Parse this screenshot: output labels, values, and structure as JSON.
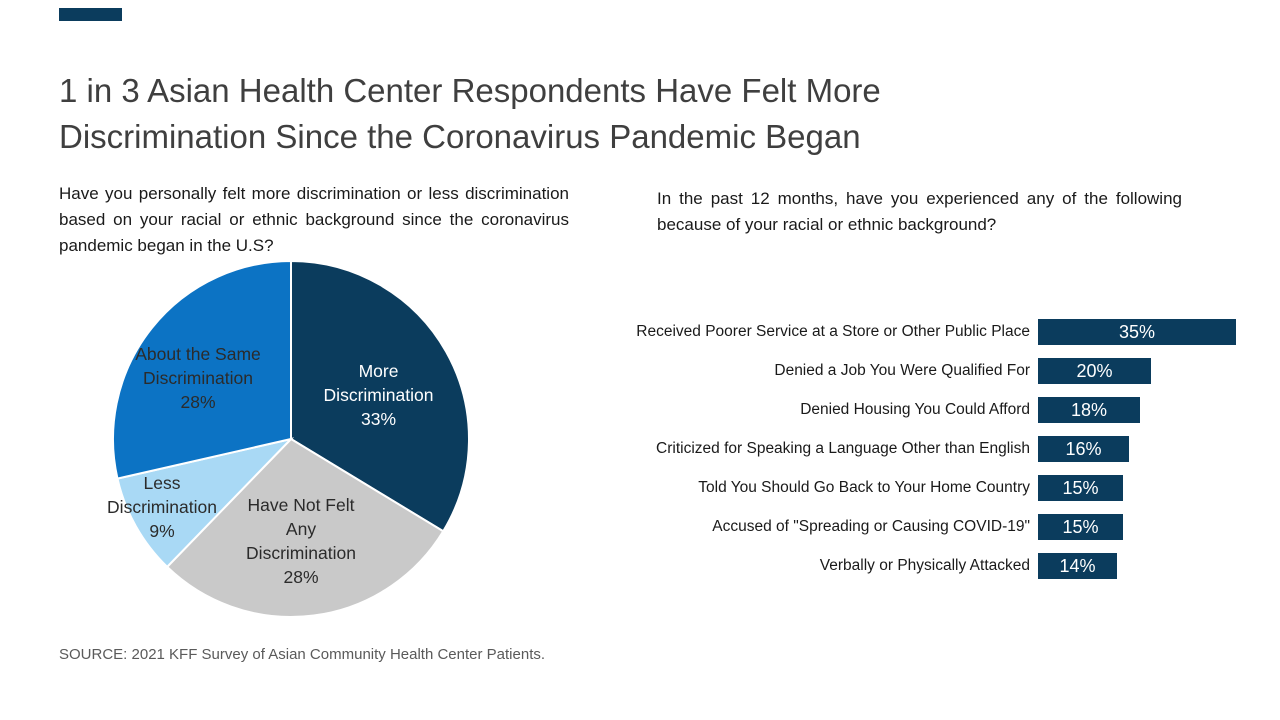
{
  "brand": {
    "accent_color": "#0b3c5d"
  },
  "title": "1 in 3 Asian Health Center Respondents Have Felt More Discrimination Since the Coronavirus Pandemic Began",
  "source": "SOURCE: 2021 KFF Survey of Asian Community Health Center Patients.",
  "chart_data": [
    {
      "type": "pie",
      "question": "Have you personally felt more discrimination or less discrimination based on your racial or ethnic background since the coronavirus pandemic began in the U.S?",
      "direction": "clockwise",
      "start_angle": "top",
      "slices": [
        {
          "label": "More Discrimination",
          "value": 33,
          "value_label": "33%",
          "color": "#0b3c5d",
          "label_color": "#ffffff"
        },
        {
          "label": "Have Not Felt Any Discrimination",
          "value": 28,
          "value_label": "28%",
          "color": "#c9c9c9",
          "label_color": "#2b2b2b"
        },
        {
          "label": "Less Discrimination",
          "value": 9,
          "value_label": "9%",
          "color": "#a9d9f5",
          "label_color": "#2b2b2b"
        },
        {
          "label": "About the Same Discrimination",
          "value": 28,
          "value_label": "28%",
          "color": "#0c73c4",
          "label_color": "#2b2b2b"
        }
      ]
    },
    {
      "type": "bar",
      "orientation": "horizontal",
      "question": "In the past 12 months, have you experienced any of the following because of your racial or ethnic background?",
      "categories": [
        "Received Poorer Service at a Store or Other Public Place",
        "Denied a Job You Were Qualified For",
        "Denied Housing You Could Afford",
        "Criticized for Speaking a Language Other than English",
        "Told You Should Go Back to Your Home Country",
        "Accused of \"Spreading or Causing COVID-19\"",
        "Verbally or Physically Attacked"
      ],
      "values": [
        35,
        20,
        18,
        16,
        15,
        15,
        14
      ],
      "value_labels": [
        "35%",
        "20%",
        "18%",
        "16%",
        "15%",
        "15%",
        "14%"
      ],
      "bar_color": "#0b3c5d",
      "value_label_color": "#ffffff",
      "xlim": [
        0,
        40
      ]
    }
  ]
}
